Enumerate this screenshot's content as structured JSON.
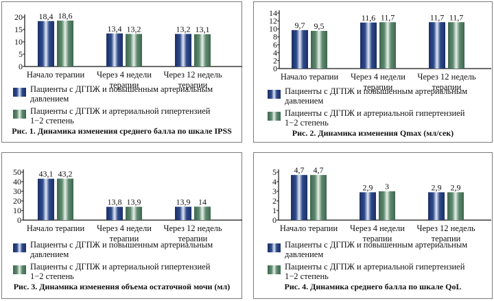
{
  "legend": [
    {
      "label": "Пациенты с ДГПЖ и повышенным артериальным давлением",
      "color": "#2e4a8a"
    },
    {
      "label": "Пациенты с ДГПЖ и артериальной гипертензией 1–2 степень",
      "color": "#5f8a6f"
    }
  ],
  "chart_data": [
    {
      "type": "bar",
      "title": "Рис. 1. Динамика изменения среднего балла по шкале IPSS",
      "categories": [
        "Начало терапии",
        "Через 4 недели терапии",
        "Через 12 недель терапии"
      ],
      "series": [
        {
          "name": "Пациенты с ДГПЖ и повышенным артериальным давлением",
          "values": [
            18.4,
            13.4,
            13.2
          ],
          "labels": [
            "18,4",
            "13,4",
            "13,2"
          ]
        },
        {
          "name": "Пациенты с ДГПЖ и артериальной гипертензией 1–2 степень",
          "values": [
            18.6,
            13.2,
            13.1
          ],
          "labels": [
            "18,6",
            "13,2",
            "13,1"
          ]
        }
      ],
      "yticks": [
        0,
        5,
        10,
        15,
        20
      ],
      "ylim": [
        0,
        20
      ],
      "xlabel": "",
      "ylabel": "",
      "grid": false,
      "legend_position": "bottom"
    },
    {
      "type": "bar",
      "title": "Рис. 2. Динамика изменения Qmax (мл/сек)",
      "categories": [
        "Начало терапии",
        "Через 4 недели терапии",
        "Через 12 недель терапии"
      ],
      "series": [
        {
          "name": "Пациенты с ДГПЖ и повышенным артериальным давлением",
          "values": [
            9.7,
            11.6,
            11.7
          ],
          "labels": [
            "9,7",
            "11,6",
            "11,7"
          ]
        },
        {
          "name": "Пациенты с ДГПЖ и артериальной гипертензией 1–2 степень",
          "values": [
            9.5,
            11.7,
            11.7
          ],
          "labels": [
            "9,5",
            "11,7",
            "11,7"
          ]
        }
      ],
      "yticks": [
        0,
        2,
        4,
        6,
        8,
        10,
        12,
        14
      ],
      "ylim": [
        0,
        14
      ],
      "xlabel": "",
      "ylabel": "",
      "grid": false,
      "legend_position": "bottom"
    },
    {
      "type": "bar",
      "title": "Рис. 3. Динамика изменения объема остаточной мочи (мл)",
      "categories": [
        "Начало терапии",
        "Через 4 недели терапии",
        "Через 12 недель терапии"
      ],
      "series": [
        {
          "name": "Пациенты с ДГПЖ и повышенным артериальным давлением",
          "values": [
            43.1,
            13.8,
            13.9
          ],
          "labels": [
            "43,1",
            "13,8",
            "13,9"
          ]
        },
        {
          "name": "Пациенты с ДГПЖ и артериальной гипертензией 1–2 степень",
          "values": [
            43.2,
            13.9,
            14
          ],
          "labels": [
            "43,2",
            "13,9",
            "14"
          ]
        }
      ],
      "yticks": [
        0,
        10,
        20,
        30,
        40,
        50
      ],
      "ylim": [
        0,
        50
      ],
      "xlabel": "",
      "ylabel": "",
      "grid": false,
      "legend_position": "bottom"
    },
    {
      "type": "bar",
      "title": "Рис. 4. Динамика среднего балла по шкале QoL",
      "categories": [
        "Начало терапии",
        "Через 4 недели терапии",
        "Через 12 недель терапии"
      ],
      "series": [
        {
          "name": "Пациенты с ДГПЖ и повышенным артериальным давлением",
          "values": [
            4.7,
            2.9,
            2.9
          ],
          "labels": [
            "4,7",
            "2,9",
            "2,9"
          ]
        },
        {
          "name": "Пациенты с ДГПЖ и артериальной гипертензией 1–2 степень",
          "values": [
            4.7,
            3,
            2.9
          ],
          "labels": [
            "4,7",
            "3",
            "2,9"
          ]
        }
      ],
      "yticks": [
        0,
        1,
        2,
        3,
        4,
        5
      ],
      "ylim": [
        0,
        5
      ],
      "xlabel": "",
      "ylabel": "",
      "grid": false,
      "legend_position": "bottom"
    }
  ],
  "category_lines": [
    [
      "Начало терапии"
    ],
    [
      "Через 4 недели",
      "терапии"
    ],
    [
      "Через 12 недель",
      "терапии"
    ]
  ],
  "legend_lines": [
    [
      "Пациенты с ДГПЖ и повышенным артериальным",
      "давлением"
    ],
    [
      "Пациенты с ДГПЖ и артериальной гипертензией",
      "1−2 степень"
    ]
  ]
}
